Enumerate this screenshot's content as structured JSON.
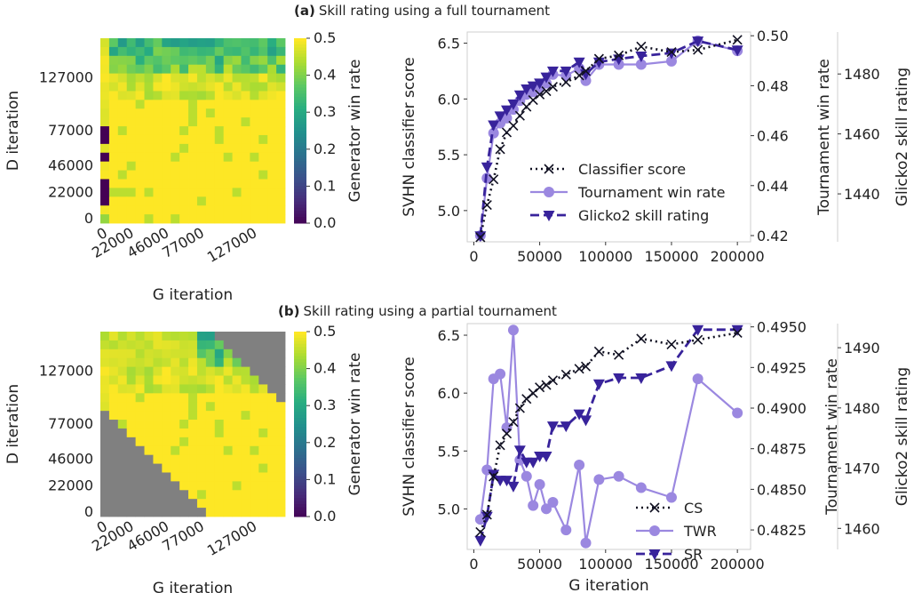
{
  "figure": {
    "panel_a_letter": "(a)",
    "panel_a_title": "Skill rating using a full tournament",
    "panel_b_letter": "(b)",
    "panel_b_title": "Skill rating using a partial tournament"
  },
  "colors": {
    "classifier": "#111122",
    "win_rate": "#9b88e0",
    "skill": "#38239b",
    "masked": "#808080"
  },
  "chart_data": [
    {
      "type": "heatmap",
      "panel": "a",
      "xlabel": "G iteration",
      "ylabel": "D iteration",
      "x_ticks": [
        "0",
        "22000",
        "46000",
        "77000",
        "127000"
      ],
      "y_ticks": [
        "0",
        "22000",
        "46000",
        "77000",
        "127000"
      ],
      "colorbar_label": "Generator win rate",
      "colorbar_ticks": [
        "0.0",
        "0.1",
        "0.2",
        "0.3",
        "0.4",
        "0.5"
      ],
      "vmin": 0.0,
      "vmax": 0.5,
      "grid_size": 21,
      "mask": "none",
      "colormap": "viridis"
    },
    {
      "type": "line",
      "panel": "a",
      "xlabel": "",
      "ylabel": "SVHN classifier score",
      "right_ylabel_1": "Tournament win rate",
      "right_ylabel_2": "Glicko2 skill rating",
      "x_ticks": [
        "0",
        "50000",
        "100000",
        "150000",
        "200000"
      ],
      "y_ticks": [
        "5.0",
        "5.5",
        "6.0",
        "6.5"
      ],
      "y2_ticks": [
        "0.42",
        "0.44",
        "0.46",
        "0.48",
        "0.50"
      ],
      "y3_ticks": [
        "1440",
        "1460",
        "1480"
      ],
      "xlim": [
        -5000,
        210000
      ],
      "ylim": [
        4.72,
        6.6
      ],
      "y2lim": [
        0.4175,
        0.5015
      ],
      "y3lim": [
        1424,
        1494
      ],
      "legend": [
        "Classifier score",
        "Tournament win rate",
        "Glicko2 skill rating"
      ],
      "legend_position": "lower-right",
      "series": [
        {
          "name": "Classifier score",
          "axis": "left",
          "x": [
            5000,
            10000,
            15000,
            20000,
            25000,
            30000,
            35000,
            40000,
            45000,
            50000,
            55000,
            60000,
            70000,
            80000,
            85000,
            95000,
            110000,
            127000,
            150000,
            170000,
            200000
          ],
          "y": [
            4.76,
            5.05,
            5.28,
            5.55,
            5.7,
            5.76,
            5.85,
            5.93,
            5.99,
            6.04,
            6.07,
            6.11,
            6.15,
            6.21,
            6.25,
            6.36,
            6.39,
            6.47,
            6.42,
            6.44,
            6.53
          ]
        },
        {
          "name": "Tournament win rate",
          "axis": "right1",
          "x": [
            5000,
            10000,
            15000,
            20000,
            25000,
            30000,
            35000,
            40000,
            45000,
            50000,
            55000,
            60000,
            70000,
            80000,
            85000,
            95000,
            110000,
            127000,
            150000,
            170000,
            200000
          ],
          "y": [
            0.42,
            0.443,
            0.461,
            0.465,
            0.467,
            0.4705,
            0.474,
            0.4765,
            0.4775,
            0.479,
            0.481,
            0.4845,
            0.484,
            0.487,
            0.482,
            0.4885,
            0.4885,
            0.4885,
            0.4898,
            0.498,
            0.494
          ]
        },
        {
          "name": "Glicko2 skill rating",
          "axis": "right2",
          "x": [
            5000,
            10000,
            15000,
            20000,
            25000,
            30000,
            35000,
            40000,
            45000,
            50000,
            55000,
            60000,
            70000,
            80000,
            85000,
            95000,
            110000,
            127000,
            150000,
            170000,
            200000
          ],
          "y": [
            1426,
            1449,
            1463,
            1466,
            1468,
            1470,
            1473,
            1475,
            1476,
            1477,
            1479,
            1481,
            1481,
            1484,
            1480,
            1484,
            1485,
            1486,
            1487,
            1491,
            1488
          ]
        }
      ]
    },
    {
      "type": "heatmap",
      "panel": "b",
      "xlabel": "G iteration",
      "ylabel": "D iteration",
      "x_ticks": [
        "0",
        "22000",
        "46000",
        "77000",
        "127000"
      ],
      "y_ticks": [
        "0",
        "22000",
        "46000",
        "77000",
        "127000"
      ],
      "colorbar_label": "Generator win rate",
      "colorbar_ticks": [
        "0.0",
        "0.1",
        "0.2",
        "0.3",
        "0.4",
        "0.5"
      ],
      "vmin": 0.0,
      "vmax": 0.5,
      "grid_size": 21,
      "mask": "band",
      "colormap": "viridis"
    },
    {
      "type": "line",
      "panel": "b",
      "xlabel": "G iteration",
      "ylabel": "SVHN classifier score",
      "right_ylabel_1": "Tournament win rate",
      "right_ylabel_2": "Glicko2 skill rating",
      "x_ticks": [
        "0",
        "50000",
        "100000",
        "150000",
        "200000"
      ],
      "y_ticks": [
        "5.0",
        "5.5",
        "6.0",
        "6.5"
      ],
      "y2_ticks": [
        "0.4825",
        "0.4850",
        "0.4875",
        "0.4900",
        "0.4925",
        "0.4950"
      ],
      "y3_ticks": [
        "1460",
        "1470",
        "1480",
        "1490"
      ],
      "xlim": [
        -5000,
        210000
      ],
      "ylim": [
        4.65,
        6.6
      ],
      "y2lim": [
        0.4813,
        0.4952
      ],
      "y3lim": [
        1456.5,
        1494
      ],
      "legend": [
        "CS",
        "TWR",
        "SR"
      ],
      "legend_position": "lower-right",
      "series": [
        {
          "name": "CS",
          "axis": "left",
          "x": [
            5000,
            10000,
            15000,
            20000,
            25000,
            30000,
            35000,
            40000,
            45000,
            50000,
            55000,
            60000,
            70000,
            80000,
            85000,
            95000,
            110000,
            127000,
            150000,
            170000,
            200000
          ],
          "y": [
            4.8,
            4.95,
            5.28,
            5.55,
            5.65,
            5.75,
            5.87,
            5.95,
            6.0,
            6.05,
            6.07,
            6.11,
            6.16,
            6.21,
            6.23,
            6.36,
            6.33,
            6.47,
            6.42,
            6.46,
            6.52
          ]
        },
        {
          "name": "TWR",
          "axis": "right1",
          "x": [
            5000,
            10000,
            15000,
            20000,
            25000,
            30000,
            35000,
            40000,
            45000,
            50000,
            55000,
            60000,
            70000,
            80000,
            85000,
            95000,
            110000,
            127000,
            150000,
            170000,
            200000
          ],
          "y": [
            0.48315,
            0.4862,
            0.4918,
            0.4921,
            0.4888,
            0.4948,
            0.4868,
            0.4858,
            0.484,
            0.4853,
            0.4838,
            0.4842,
            0.4825,
            0.4865,
            0.4817,
            0.4856,
            0.4858,
            0.4851,
            0.4845,
            0.4918,
            0.4897
          ]
        },
        {
          "name": "SR",
          "axis": "right2",
          "x": [
            5000,
            10000,
            15000,
            20000,
            25000,
            30000,
            35000,
            40000,
            45000,
            50000,
            55000,
            60000,
            70000,
            80000,
            85000,
            95000,
            110000,
            127000,
            150000,
            170000,
            200000
          ],
          "y": [
            1458,
            1462,
            1469,
            1468,
            1468,
            1467,
            1473,
            1471,
            1471,
            1472,
            1472,
            1477,
            1477,
            1479,
            1478,
            1484,
            1485,
            1485,
            1487,
            1493,
            1493
          ]
        }
      ]
    }
  ]
}
